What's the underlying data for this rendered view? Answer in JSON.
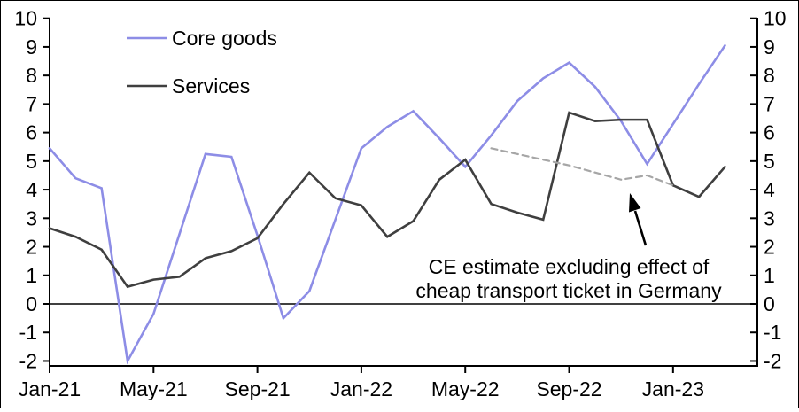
{
  "legend": {
    "core_goods": "Core goods",
    "services": "Services"
  },
  "annotation": {
    "line1": "CE estimate excluding effect of",
    "line2": "cheap transport ticket in Germany"
  },
  "colors": {
    "core_goods": "#8d8de6",
    "services": "#3f3f3f",
    "estimate": "#a6a6a6",
    "axis": "#000000"
  },
  "chart_data": {
    "type": "line",
    "title": "",
    "xlabel": "",
    "ylabel": "",
    "ylim": [
      -2,
      10
    ],
    "grid": false,
    "dual_y_axis": true,
    "legend_position": "top-left-inside",
    "y_ticks": [
      10,
      9,
      8,
      7,
      6,
      5,
      4,
      3,
      2,
      1,
      0,
      -1,
      -2
    ],
    "x_tick_labels": [
      "Jan-21",
      "May-21",
      "Sep-21",
      "Jan-22",
      "May-22",
      "Sep-22",
      "Jan-23"
    ],
    "x_tick_month_index": [
      0,
      4,
      8,
      12,
      16,
      20,
      24
    ],
    "months": [
      "Jan-21",
      "Feb-21",
      "Mar-21",
      "Apr-21",
      "May-21",
      "Jun-21",
      "Jul-21",
      "Aug-21",
      "Sep-21",
      "Oct-21",
      "Nov-21",
      "Dec-21",
      "Jan-22",
      "Feb-22",
      "Mar-22",
      "Apr-22",
      "May-22",
      "Jun-22",
      "Jul-22",
      "Aug-22",
      "Sep-22",
      "Oct-22",
      "Nov-22",
      "Dec-22",
      "Jan-23",
      "Feb-23",
      "Mar-23"
    ],
    "series": [
      {
        "name": "Core goods",
        "style": "solid",
        "color_key": "core_goods",
        "start_index": 0,
        "values": [
          5.45,
          4.4,
          4.05,
          -2.0,
          -0.35,
          2.45,
          5.25,
          5.15,
          2.4,
          -0.5,
          0.45,
          2.95,
          5.45,
          6.2,
          6.75,
          5.8,
          4.8,
          5.9,
          7.1,
          7.9,
          8.45,
          7.6,
          6.4,
          4.9,
          6.3,
          7.7,
          9.05
        ]
      },
      {
        "name": "Services",
        "style": "solid",
        "color_key": "services",
        "start_index": 0,
        "values": [
          2.65,
          2.35,
          1.9,
          0.6,
          0.85,
          0.95,
          1.6,
          1.85,
          2.3,
          3.5,
          4.6,
          3.7,
          3.45,
          2.35,
          2.9,
          4.35,
          5.05,
          3.5,
          3.2,
          2.95,
          6.7,
          6.4,
          6.45,
          6.45,
          4.15,
          3.75,
          4.8
        ]
      },
      {
        "name": "CE estimate excluding effect of cheap transport ticket in Germany",
        "style": "dashed",
        "color_key": "estimate",
        "start_index": 17,
        "values": [
          5.45,
          5.25,
          5.05,
          4.85,
          4.6,
          4.35,
          4.5,
          4.15
        ]
      }
    ]
  }
}
